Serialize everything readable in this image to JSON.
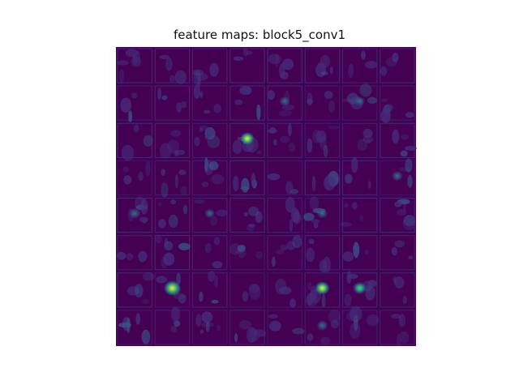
{
  "chart_data": {
    "type": "heatmap",
    "title": "feature maps: block5_conv1",
    "xlabel": "",
    "ylabel": "",
    "axes": "off",
    "grid": {
      "rows": 8,
      "cols": 8
    },
    "colormap": "viridis",
    "colors": {
      "low": "#440154",
      "low_mid": "#3b528b",
      "mid": "#21918c",
      "high_mid": "#5ec962",
      "high": "#fde725"
    },
    "hotspots": [
      {
        "tile_row": 2,
        "tile_col": 3,
        "value": 0.7
      },
      {
        "tile_row": 4,
        "tile_col": 0,
        "value": 0.45
      },
      {
        "tile_row": 6,
        "tile_col": 1,
        "value": 0.95
      },
      {
        "tile_row": 6,
        "tile_col": 5,
        "value": 0.75
      },
      {
        "tile_row": 6,
        "tile_col": 6,
        "value": 0.65
      },
      {
        "tile_row": 7,
        "tile_col": 5,
        "value": 0.4
      },
      {
        "tile_row": 1,
        "tile_col": 4,
        "value": 0.35
      },
      {
        "tile_row": 1,
        "tile_col": 6,
        "value": 0.3
      },
      {
        "tile_row": 3,
        "tile_col": 7,
        "value": 0.4
      },
      {
        "tile_row": 4,
        "tile_col": 2,
        "value": 0.3
      },
      {
        "tile_row": 4,
        "tile_col": 5,
        "value": 0.35
      }
    ]
  }
}
